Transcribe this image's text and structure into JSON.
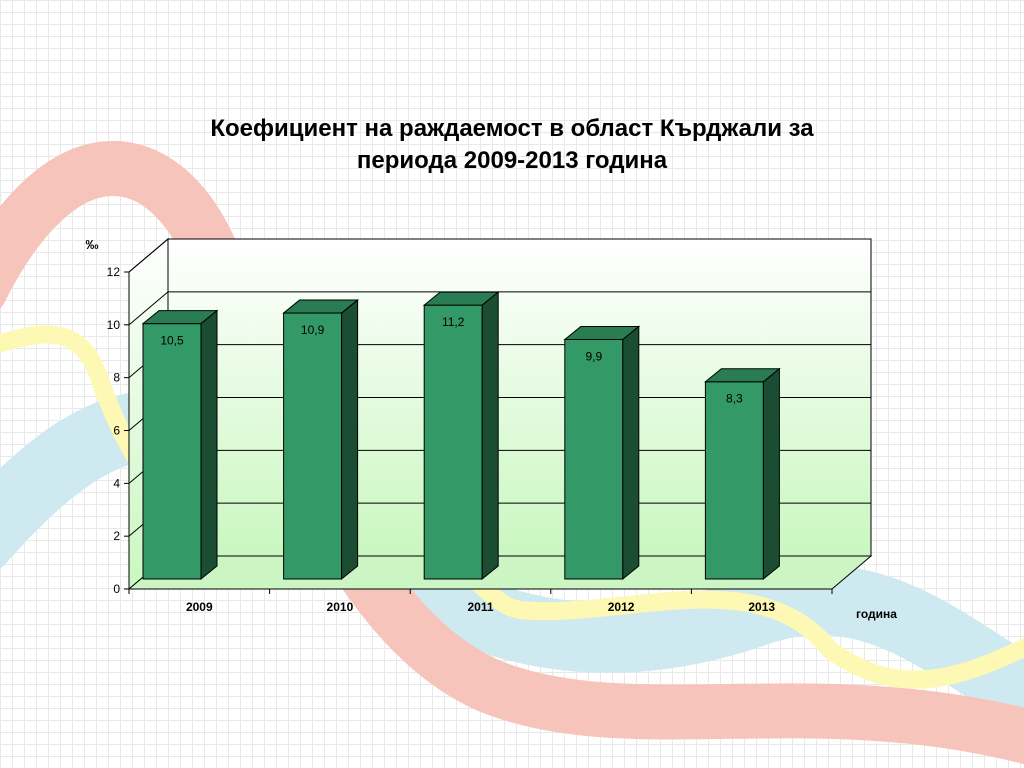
{
  "chart_data": {
    "type": "bar",
    "title_lines": [
      "Коефициент на раждаемост в област Кърджали за",
      "периода 2009-2013 година"
    ],
    "categories": [
      "2009",
      "2010",
      "2011",
      "2012",
      "2013"
    ],
    "values": [
      10.5,
      10.9,
      11.2,
      9.9,
      8.3
    ],
    "data_labels": [
      "10,5",
      "10,9",
      "11,2",
      "9,9",
      "8,3"
    ],
    "xlabel": "година",
    "ylabel": "‰",
    "ylim": [
      0,
      12
    ],
    "yticks": [
      0,
      2,
      4,
      6,
      8,
      10,
      12
    ],
    "grid": true,
    "bar_style": "3d"
  },
  "colors": {
    "bar_front": "#339966",
    "bar_top": "#2a7d52",
    "bar_side": "#1b4d33",
    "bar_outline": "#000000",
    "wall_gradient_top": "#ffffff",
    "wall_gradient_bottom": "#c9f7c0",
    "floor": "#ccf5c4",
    "wave_red": "#f7c4bc",
    "wave_yellow": "#fdf8b4",
    "wave_blue": "#cfe9f1"
  }
}
